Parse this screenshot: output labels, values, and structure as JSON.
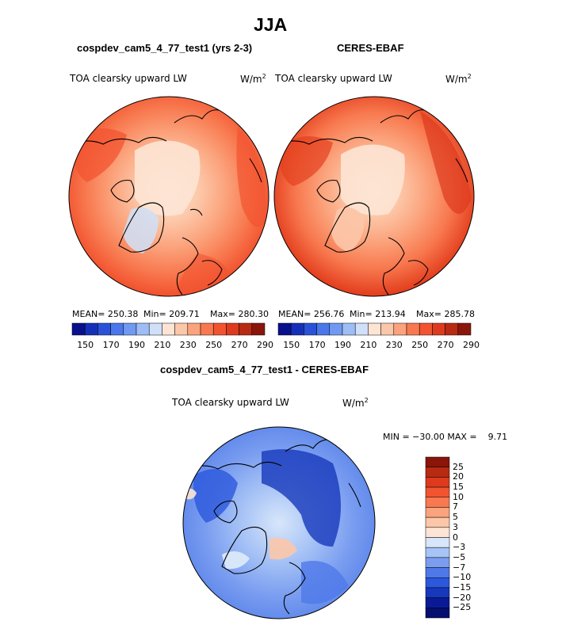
{
  "figure": {
    "title": "JJA"
  },
  "panels": [
    {
      "title": "cospdev_cam5_4_77_test1 (yrs 2-3)",
      "variable": "TOA clearsky upward LW",
      "units_base": "W/m",
      "units_exp": "2",
      "stats": {
        "mean": "MEAN= 250.38",
        "min": "Min= 209.71",
        "max": "Max= 280.30"
      },
      "colorbar_ticks": [
        "150",
        "170",
        "190",
        "210",
        "230",
        "250",
        "270",
        "290"
      ]
    },
    {
      "title": "CERES-EBAF",
      "variable": "TOA clearsky upward LW",
      "units_base": "W/m",
      "units_exp": "2",
      "stats": {
        "mean": "MEAN= 256.76",
        "min": "Min= 213.94",
        "max": "Max= 285.78"
      },
      "colorbar_ticks": [
        "150",
        "170",
        "190",
        "210",
        "230",
        "250",
        "270",
        "290"
      ]
    }
  ],
  "diff_panel": {
    "title": "cospdev_cam5_4_77_test1 - CERES-EBAF",
    "variable": "TOA clearsky upward LW",
    "units_base": "W/m",
    "units_exp": "2",
    "stats": "MIN = −30.00 MAX =    9.71",
    "colorbar_ticks": [
      "25",
      "20",
      "15",
      "10",
      "7",
      "5",
      "3",
      "0",
      "−3",
      "−5",
      "−7",
      "−10",
      "−15",
      "−20",
      "−25"
    ]
  },
  "colors": {
    "abs_scale": [
      "#08108c",
      "#1530b8",
      "#2a52d8",
      "#4a78ea",
      "#7099f2",
      "#9ebdf6",
      "#cfe0f8",
      "#fde4d4",
      "#fcc7a8",
      "#fba37c",
      "#f8794f",
      "#f25430",
      "#dd3a1e",
      "#b82a12",
      "#8a150a"
    ],
    "diff_scale": [
      "#8a150a",
      "#b82a12",
      "#dd3a1e",
      "#f25430",
      "#f8794f",
      "#fba37c",
      "#fcc7a8",
      "#fde4d4",
      "#d8e6fa",
      "#a8c4f6",
      "#7a9df0",
      "#4f79e8",
      "#2c58dc",
      "#1738bc",
      "#0a1a96",
      "#050f70"
    ]
  }
}
